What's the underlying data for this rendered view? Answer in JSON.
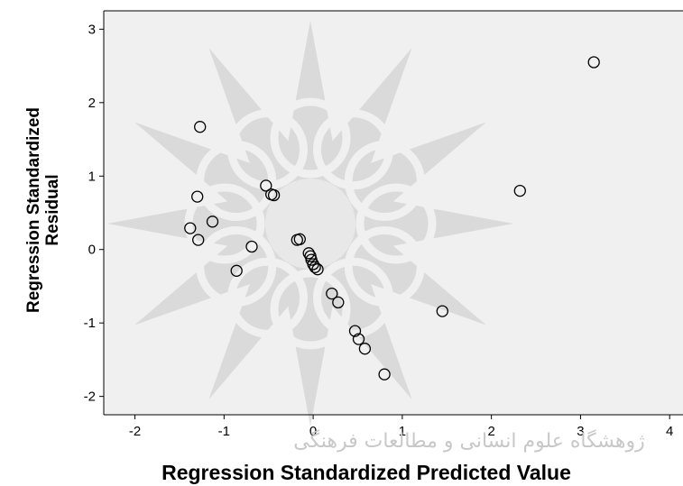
{
  "chart_data": {
    "type": "scatter",
    "title": "",
    "xlabel": "Regression Standardized Predicted Value",
    "ylabel_lines": [
      "Regression Standardized",
      "Residual"
    ],
    "xlim": [
      -2.35,
      4.15
    ],
    "ylim": [
      -2.25,
      3.25
    ],
    "xticks": [
      -2,
      -1,
      0,
      1,
      2,
      3,
      4
    ],
    "yticks": [
      -2,
      -1,
      0,
      1,
      2,
      3
    ],
    "grid": false,
    "legend": "none",
    "points": [
      {
        "x": -1.27,
        "y": 1.67
      },
      {
        "x": -1.3,
        "y": 0.72
      },
      {
        "x": -1.38,
        "y": 0.29
      },
      {
        "x": -1.29,
        "y": 0.13
      },
      {
        "x": -1.13,
        "y": 0.38
      },
      {
        "x": -0.86,
        "y": -0.29
      },
      {
        "x": -0.69,
        "y": 0.04
      },
      {
        "x": -0.53,
        "y": 0.87
      },
      {
        "x": -0.47,
        "y": 0.75
      },
      {
        "x": -0.44,
        "y": 0.74
      },
      {
        "x": -0.18,
        "y": 0.13
      },
      {
        "x": -0.15,
        "y": 0.14
      },
      {
        "x": -0.05,
        "y": -0.05
      },
      {
        "x": -0.03,
        "y": -0.09
      },
      {
        "x": -0.02,
        "y": -0.14
      },
      {
        "x": 0.0,
        "y": -0.2
      },
      {
        "x": 0.02,
        "y": -0.24
      },
      {
        "x": 0.05,
        "y": -0.27
      },
      {
        "x": 0.21,
        "y": -0.6
      },
      {
        "x": 0.28,
        "y": -0.72
      },
      {
        "x": 0.47,
        "y": -1.11
      },
      {
        "x": 0.51,
        "y": -1.22
      },
      {
        "x": 0.58,
        "y": -1.35
      },
      {
        "x": 0.8,
        "y": -1.7
      },
      {
        "x": 1.45,
        "y": -0.84
      },
      {
        "x": 2.32,
        "y": 0.8
      },
      {
        "x": 3.15,
        "y": 2.55
      }
    ]
  },
  "watermark": {
    "text": "ژوهشگاه علوم انسانی و مطالعات فرهنگی",
    "color": "#bdbdbd"
  },
  "colors": {
    "plot_bg": "#f0f0f0",
    "axis": "#000000",
    "marker_stroke": "#000000"
  }
}
